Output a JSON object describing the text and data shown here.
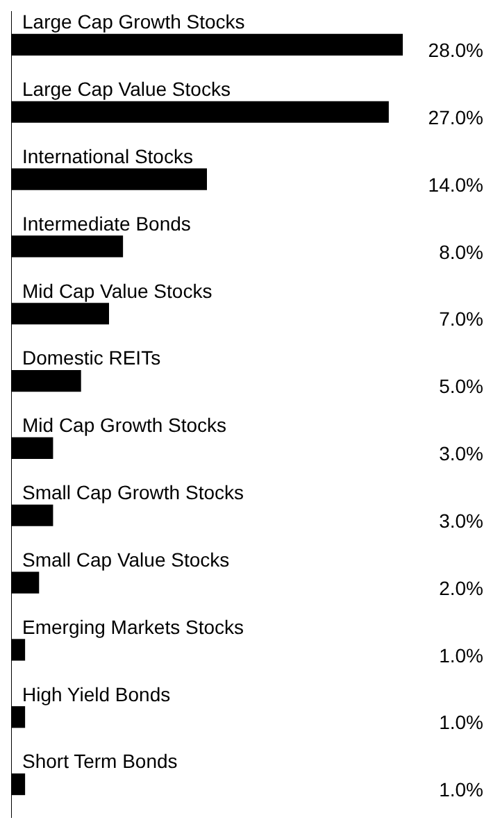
{
  "chart_data": {
    "type": "bar",
    "orientation": "horizontal",
    "categories": [
      "Large Cap Growth Stocks",
      "Large Cap Value Stocks",
      "International Stocks",
      "Intermediate Bonds",
      "Mid Cap Value Stocks",
      "Domestic REITs",
      "Mid Cap Growth Stocks",
      "Small Cap Growth Stocks",
      "Small Cap Value Stocks",
      "Emerging Markets Stocks",
      "High Yield Bonds",
      "Short Term Bonds"
    ],
    "values": [
      28,
      27,
      14,
      8,
      7,
      5,
      3,
      3,
      2,
      1,
      1,
      1
    ],
    "value_labels": [
      "28.0%",
      "27.0%",
      "14.0%",
      "8.0%",
      "7.0%",
      "5.0%",
      "3.0%",
      "3.0%",
      "2.0%",
      "1.0%",
      "1.0%",
      "1.0%"
    ],
    "color": "#000000",
    "grid": false,
    "legend": false
  }
}
